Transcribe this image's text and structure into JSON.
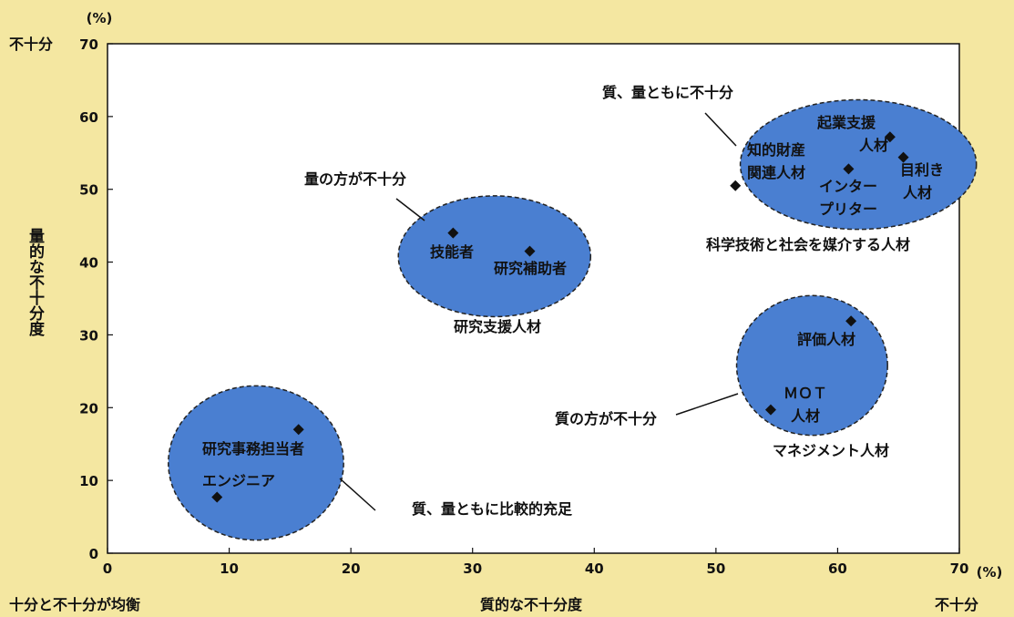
{
  "chart_data": {
    "type": "scatter",
    "xlabel": "質的な不十分度",
    "ylabel": "量的な不十分度",
    "x_unit": "(%)",
    "y_unit": "(%)",
    "xlim": [
      0,
      70
    ],
    "ylim": [
      0,
      70
    ],
    "x_ticks": [
      "0",
      "10",
      "20",
      "30",
      "40",
      "50",
      "60",
      "70"
    ],
    "y_ticks": [
      "0",
      "10",
      "20",
      "30",
      "40",
      "50",
      "60",
      "70"
    ],
    "y_top_label": "不十分",
    "x_right_label": "不十分",
    "origin_label": "十分と不十分が均衡",
    "points": [
      {
        "label": "エンジニア",
        "x": 9.0,
        "y": 7.7
      },
      {
        "label": "研究事務担当者",
        "x": 15.7,
        "y": 17.0
      },
      {
        "label": "技能者",
        "x": 28.4,
        "y": 44.0
      },
      {
        "label": "研究補助者",
        "x": 34.7,
        "y": 41.5
      },
      {
        "label": "MOT人材",
        "x": 54.5,
        "y": 19.7
      },
      {
        "label": "評価人材",
        "x": 61.1,
        "y": 31.9
      },
      {
        "label": "知的財産関連人材",
        "x": 51.6,
        "y": 50.5
      },
      {
        "label": "インタープリター",
        "x": 60.9,
        "y": 52.8
      },
      {
        "label": "起業支援人材",
        "x": 64.3,
        "y": 57.2
      },
      {
        "label": "目利き人材",
        "x": 65.4,
        "y": 54.4
      }
    ],
    "groups": [
      {
        "name": "研究支援人材",
        "note": "量の方が不十分"
      },
      {
        "name": "マネジメント人材",
        "note": "質の方が不十分"
      },
      {
        "name": "科学技術と社会を媒介する人材",
        "note": "質、量ともに不十分"
      },
      {
        "name": "",
        "note": "質、量ともに比較的充足"
      }
    ]
  },
  "colors": {
    "background": "#f4e7a1",
    "ellipse_fill": "#4a7fd1",
    "ellipse_stroke": "#222222",
    "marker": "#111111"
  }
}
